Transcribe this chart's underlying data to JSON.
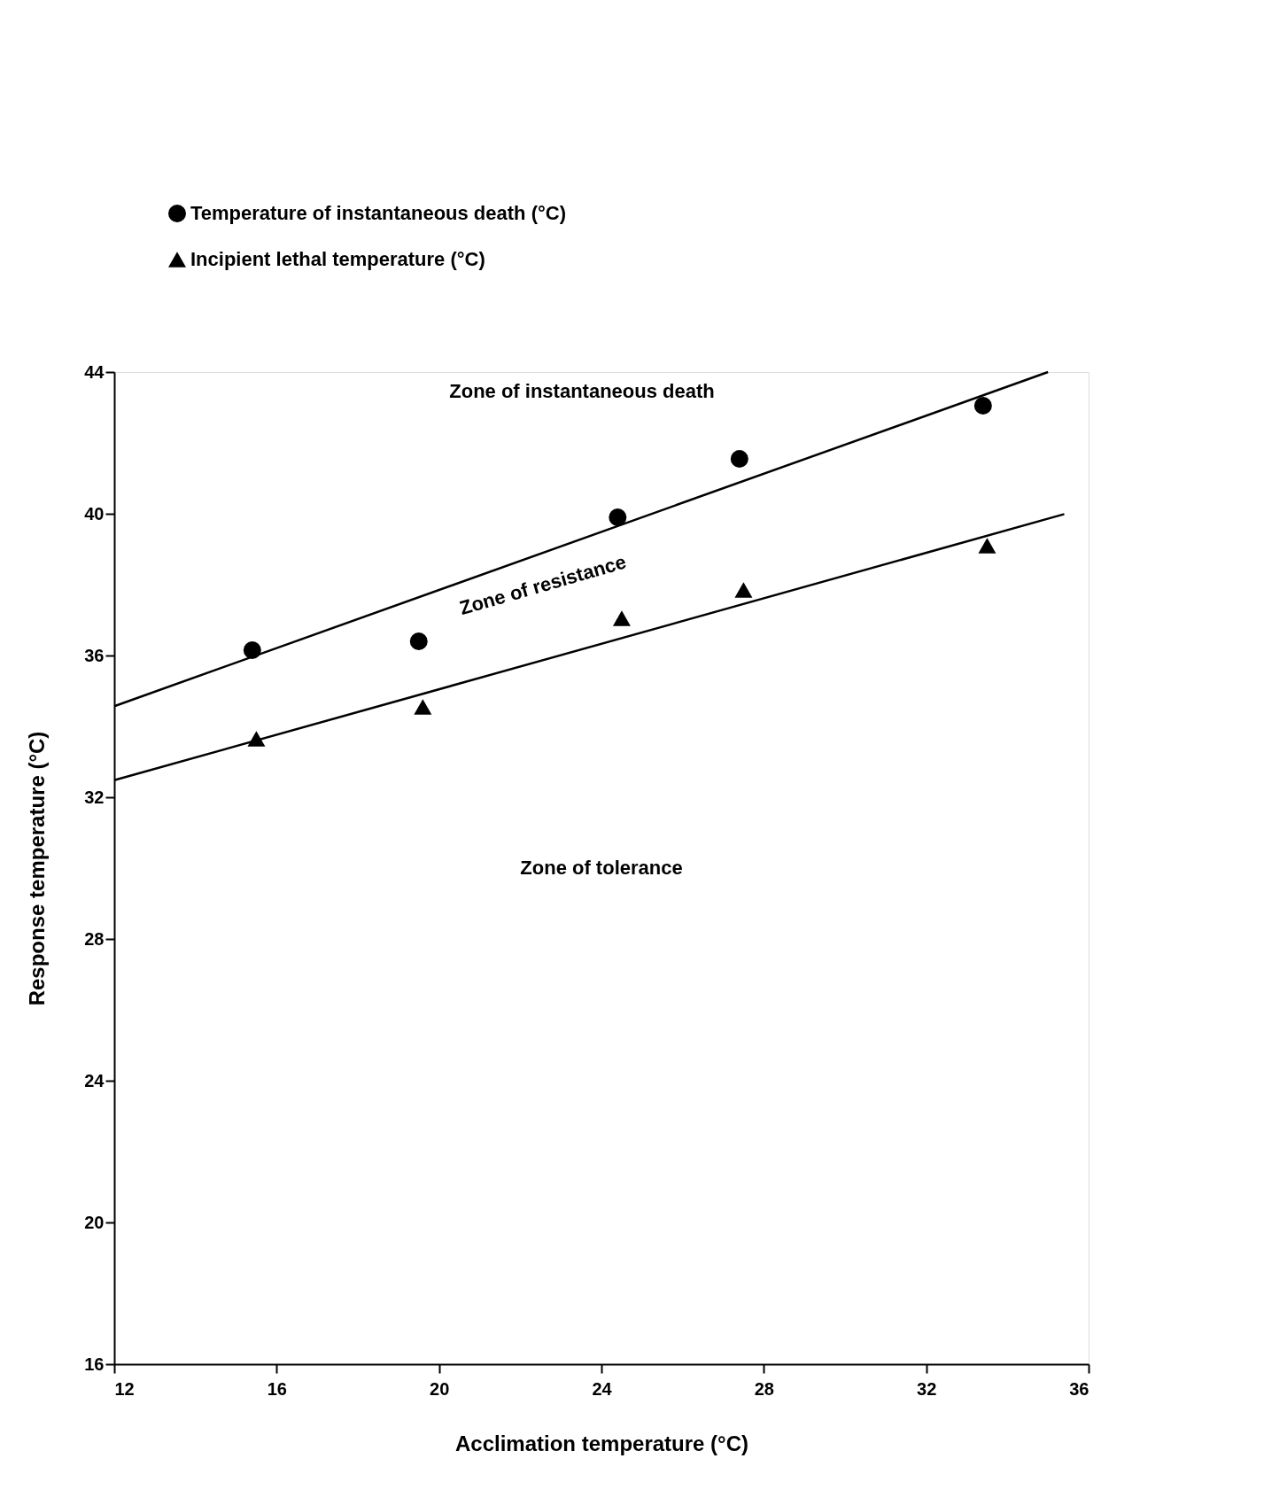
{
  "chart_data": {
    "type": "scatter",
    "xlabel": "Acclimation temperature (°C)",
    "ylabel": "Response temperature (°C)",
    "xlim": [
      12,
      36
    ],
    "ylim": [
      16,
      44
    ],
    "xticks": [
      12,
      16,
      20,
      24,
      28,
      32,
      36
    ],
    "yticks": [
      16,
      20,
      24,
      28,
      32,
      36,
      40,
      44
    ],
    "grid": false,
    "legend": "top",
    "series": [
      {
        "name": "Temperature of instantaneous death (°C)",
        "marker": "circle",
        "color": "#000000",
        "x": [
          15.4,
          19.5,
          24.4,
          27.4,
          33.4
        ],
        "values": [
          36.15,
          36.4,
          39.9,
          41.55,
          43.05
        ]
      },
      {
        "name": "Incipient lethal temperature (°C)",
        "marker": "triangle",
        "color": "#000000",
        "x": [
          15.5,
          19.6,
          24.5,
          27.5,
          33.5
        ],
        "values": [
          33.65,
          34.55,
          37.05,
          37.85,
          39.1
        ]
      },
      {
        "type": "line",
        "color": "#000000",
        "x": [
          12,
          35.0
        ],
        "values": [
          34.57,
          44.0
        ]
      },
      {
        "type": "line",
        "color": "#000000",
        "x": [
          12,
          35.4
        ],
        "values": [
          32.48,
          39.99
        ]
      }
    ],
    "annotations": [
      "Zone of instantaneous death",
      "Zone of resistance",
      "Zone of tolerance"
    ]
  }
}
